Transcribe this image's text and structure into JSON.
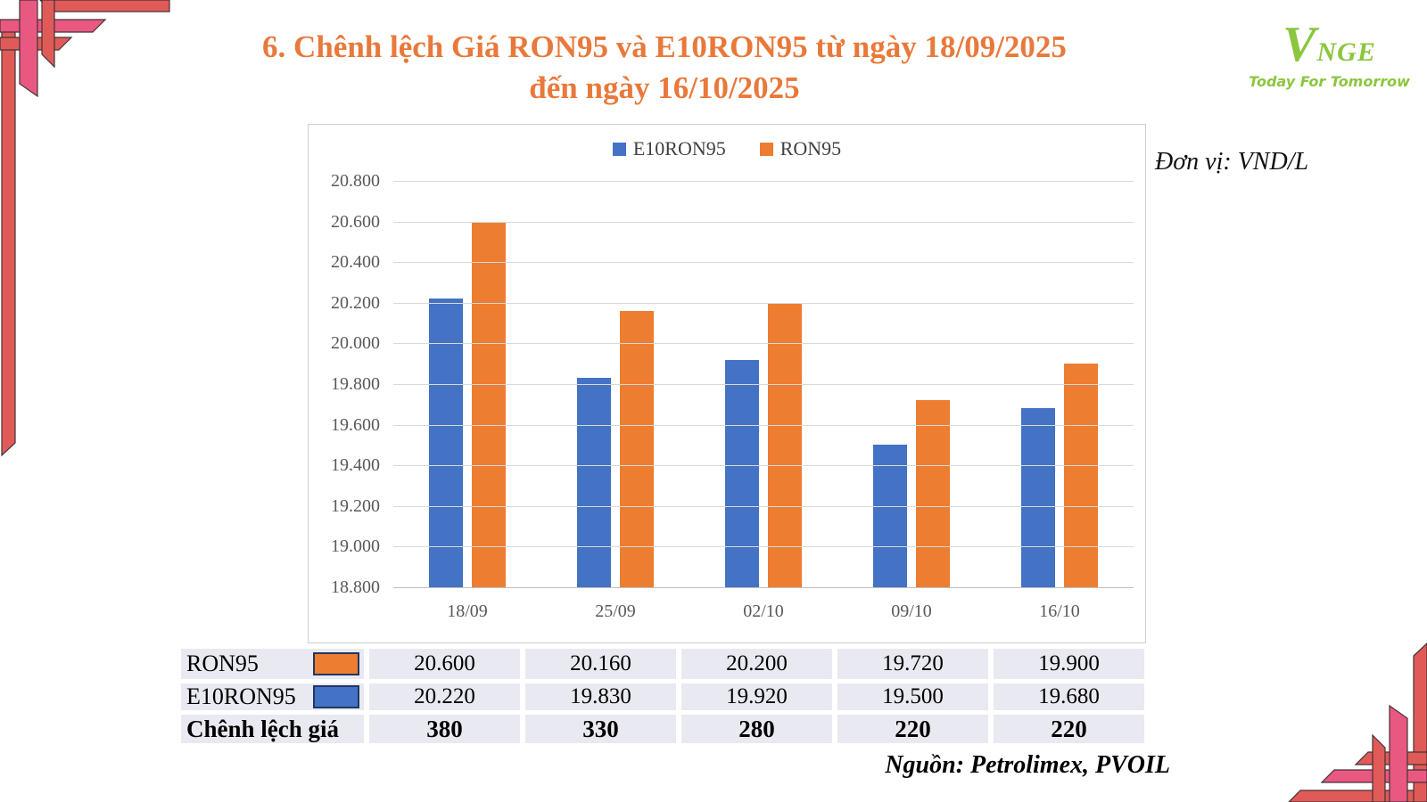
{
  "title": {
    "line1": "6. Chênh lệch Giá RON95 và E10RON95 từ ngày 18/09/2025",
    "line2": "đến ngày 16/10/2025",
    "color": "#E8793B"
  },
  "logo": {
    "v": "V",
    "rest": "NGE",
    "tagline": "Today For Tomorrow",
    "color": "#8CC63F"
  },
  "unit_label": "Đơn vị: VND/L",
  "source_label": "Nguồn: Petrolimex, PVOIL",
  "chart_data": {
    "type": "bar",
    "categories": [
      "18/09",
      "25/09",
      "02/10",
      "09/10",
      "16/10"
    ],
    "series": [
      {
        "name": "E10RON95",
        "color": "#4472C4",
        "values": [
          20220,
          19830,
          19920,
          19500,
          19680
        ]
      },
      {
        "name": "RON95",
        "color": "#ED7D31",
        "values": [
          20600,
          20160,
          20200,
          19720,
          19900
        ]
      }
    ],
    "ylim": [
      18800,
      20800
    ],
    "ytick_step": 200,
    "ytick_labels": [
      "18.800",
      "19.000",
      "19.200",
      "19.400",
      "19.600",
      "19.800",
      "20.000",
      "20.200",
      "20.400",
      "20.600",
      "20.800"
    ],
    "legend_position": "top-center",
    "gridlines": true,
    "grid_color": "#D9D9D9",
    "axis_color": "#BFBFBF",
    "tick_color": "#595959"
  },
  "table": {
    "row_bg": "#E9E9F1",
    "rows": [
      {
        "label": "RON95",
        "swatch_color": "#ED7D31",
        "bold": false,
        "values": [
          "20.600",
          "20.160",
          "20.200",
          "19.720",
          "19.900"
        ]
      },
      {
        "label": "E10RON95",
        "swatch_color": "#4472C4",
        "bold": false,
        "values": [
          "20.220",
          "19.830",
          "19.920",
          "19.500",
          "19.680"
        ]
      },
      {
        "label": "Chênh lệch giá",
        "swatch_color": null,
        "bold": true,
        "values": [
          "380",
          "330",
          "280",
          "220",
          "220"
        ]
      }
    ]
  },
  "ornament": {
    "pink": "#E95880",
    "red": "#E05B58",
    "outline": "#433338"
  }
}
